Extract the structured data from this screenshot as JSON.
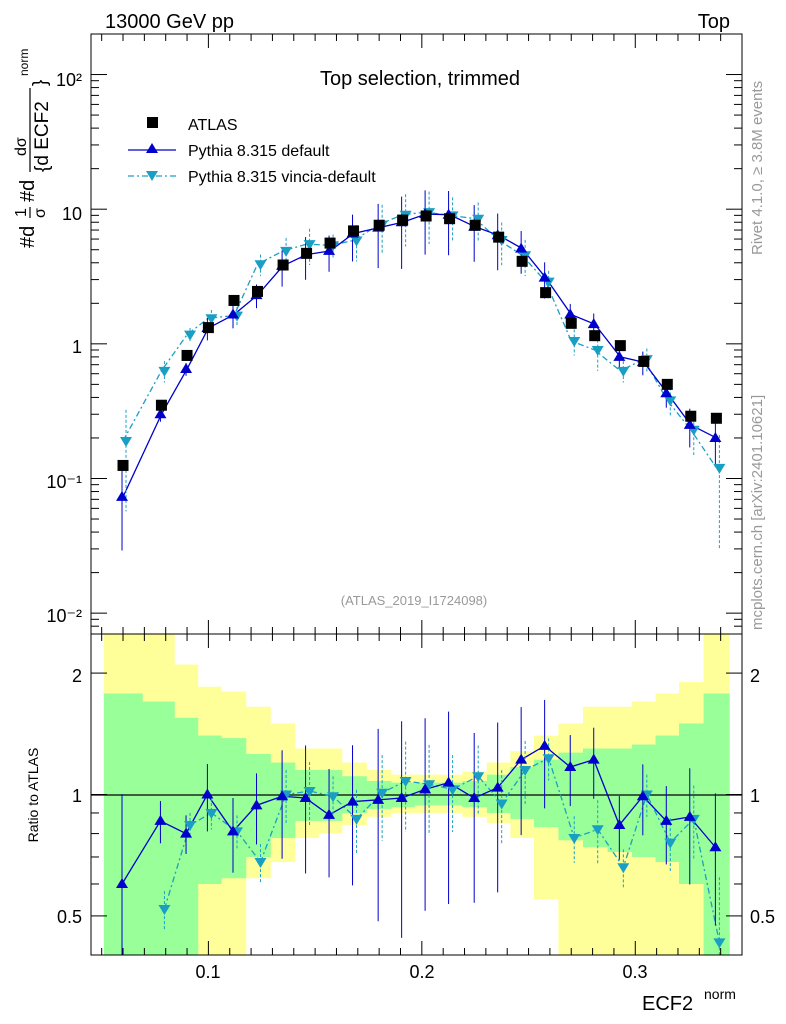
{
  "header": {
    "left": "13000 GeV pp",
    "right": "Top",
    "side_rivet": "Rivet 4.1.0, ≥ 3.8M events",
    "side_mcplots": "mcplots.cern.ch [arXiv:2401.10621]"
  },
  "main": {
    "title": "Top selection, trimmed",
    "analysis": "(ATLAS_2019_I1724098)",
    "ylabel_parts": {
      "a": "#d",
      "one": "1",
      "sigma": "σ",
      "b": "#d",
      "dsigma": "dσ",
      "decf": "{d ECF2",
      "brace": "}",
      "norm": "norm"
    },
    "y_tick_labels": [
      "10⁻²",
      "10⁻¹",
      "1",
      "10",
      "10²"
    ]
  },
  "legend": {
    "atlas": "ATLAS",
    "pythia_default": "Pythia 8.315 default",
    "pythia_vincia": "Pythia 8.315 vincia-default"
  },
  "ratio": {
    "ylabel": "Ratio to ATLAS",
    "y_tick_labels": [
      "0.5",
      "1",
      "2"
    ]
  },
  "xaxis": {
    "label": "ECF2",
    "label_sup": "norm",
    "tick_labels": [
      "0.1",
      "0.2",
      "0.3"
    ]
  },
  "colors": {
    "atlas": "#000000",
    "default": "#0000cc",
    "vincia": "#1a9fc4",
    "band_inner": "#99ff99",
    "band_outer": "#ffff99"
  },
  "chart_data": {
    "type": "scatter",
    "x": [
      0.06,
      0.078,
      0.09,
      0.1,
      0.112,
      0.123,
      0.135,
      0.146,
      0.157,
      0.168,
      0.18,
      0.191,
      0.202,
      0.213,
      0.225,
      0.236,
      0.247,
      0.258,
      0.27,
      0.281,
      0.293,
      0.304,
      0.315,
      0.326,
      0.338
    ],
    "xlim": [
      0.045,
      0.35
    ],
    "main_ylim": [
      0.007,
      200
    ],
    "main_yscale": "log",
    "ratio_ylim": [
      0.4,
      2.5
    ],
    "ratio_yscale": "log",
    "series": [
      {
        "name": "ATLAS",
        "values": [
          0.125,
          0.35,
          0.82,
          1.32,
          2.1,
          2.45,
          3.85,
          4.7,
          5.6,
          6.9,
          7.6,
          8.3,
          8.9,
          8.5,
          7.6,
          6.2,
          4.1,
          2.4,
          1.42,
          1.15,
          0.97,
          0.74,
          0.5,
          0.29,
          0.28
        ]
      },
      {
        "name": "Pythia 8.315 default",
        "values": [
          0.073,
          0.3,
          0.65,
          1.31,
          1.65,
          2.3,
          3.8,
          4.6,
          4.9,
          6.6,
          7.3,
          8.0,
          9.2,
          9.1,
          7.4,
          6.4,
          5.1,
          3.1,
          1.65,
          1.4,
          0.8,
          0.73,
          0.43,
          0.25,
          0.2
        ]
      },
      {
        "name": "Pythia 8.315 vincia-default",
        "values": [
          0.19,
          0.63,
          1.17,
          1.55,
          1.62,
          3.9,
          4.9,
          5.5,
          5.4,
          5.85,
          7.7,
          9.1,
          9.5,
          9.0,
          8.5,
          5.9,
          4.55,
          2.9,
          1.05,
          0.9,
          0.63,
          0.77,
          0.38,
          0.23,
          0.12
        ]
      }
    ],
    "errors_default": [
      0.67,
      0.12,
      0.11,
      0.19,
      0.21,
      0.2,
      0.3,
      0.35,
      0.3,
      0.38,
      0.5,
      0.55,
      0.5,
      0.5,
      0.45,
      0.45,
      0.35,
      0.3,
      0.2,
      0.2,
      0.18,
      0.2,
      0.22,
      0.32,
      0.36
    ],
    "errors_vincia": [
      0.7,
      0.18,
      0.12,
      0.15,
      0.16,
      0.18,
      0.25,
      0.3,
      0.2,
      0.3,
      0.4,
      0.42,
      0.42,
      0.36,
      0.32,
      0.35,
      0.3,
      0.2,
      0.22,
      0.3,
      0.18,
      0.2,
      0.25,
      0.35,
      0.75
    ],
    "ratio_default": [
      0.6,
      0.86,
      0.8,
      1.0,
      0.81,
      0.94,
      0.99,
      0.98,
      0.89,
      0.96,
      0.97,
      0.98,
      1.03,
      1.07,
      0.98,
      1.04,
      1.22,
      1.32,
      1.17,
      1.22,
      0.84,
      0.99,
      0.86,
      0.88,
      0.74
    ],
    "ratio_vincia": [
      null,
      0.52,
      0.84,
      0.9,
      0.81,
      0.68,
      1.0,
      1.02,
      0.99,
      0.87,
      1.01,
      1.08,
      1.06,
      1.03,
      1.11,
      0.95,
      1.15,
      1.23,
      0.78,
      0.82,
      0.66,
      1.0,
      0.76,
      0.87,
      0.43
    ],
    "ratio_band_inner": [
      [
        0.4,
        1.78
      ],
      [
        0.4,
        1.7
      ],
      [
        0.4,
        1.55
      ],
      [
        0.6,
        1.4
      ],
      [
        0.62,
        1.38
      ],
      [
        0.7,
        1.26
      ],
      [
        0.78,
        1.2
      ],
      [
        0.86,
        1.15
      ],
      [
        0.86,
        1.15
      ],
      [
        0.9,
        1.11
      ],
      [
        0.92,
        1.08
      ],
      [
        0.93,
        1.07
      ],
      [
        0.94,
        1.07
      ],
      [
        0.94,
        1.07
      ],
      [
        0.93,
        1.08
      ],
      [
        0.9,
        1.12
      ],
      [
        0.87,
        1.17
      ],
      [
        0.83,
        1.22
      ],
      [
        0.77,
        1.27
      ],
      [
        0.74,
        1.3
      ],
      [
        0.72,
        1.3
      ],
      [
        0.7,
        1.33
      ],
      [
        0.68,
        1.4
      ],
      [
        0.6,
        1.5
      ],
      [
        0.4,
        1.78
      ]
    ],
    "ratio_band_outer": [
      [
        0.4,
        2.5
      ],
      [
        0.4,
        2.5
      ],
      [
        0.4,
        2.1
      ],
      [
        0.4,
        1.85
      ],
      [
        0.4,
        1.8
      ],
      [
        0.62,
        1.65
      ],
      [
        0.68,
        1.5
      ],
      [
        0.78,
        1.3
      ],
      [
        0.8,
        1.3
      ],
      [
        0.84,
        1.2
      ],
      [
        0.88,
        1.15
      ],
      [
        0.9,
        1.12
      ],
      [
        0.9,
        1.12
      ],
      [
        0.9,
        1.12
      ],
      [
        0.88,
        1.14
      ],
      [
        0.85,
        1.2
      ],
      [
        0.78,
        1.28
      ],
      [
        0.55,
        1.4
      ],
      [
        0.4,
        1.5
      ],
      [
        0.4,
        1.65
      ],
      [
        0.4,
        1.65
      ],
      [
        0.4,
        1.7
      ],
      [
        0.4,
        1.78
      ],
      [
        0.4,
        1.9
      ],
      [
        0.4,
        2.5
      ]
    ]
  }
}
